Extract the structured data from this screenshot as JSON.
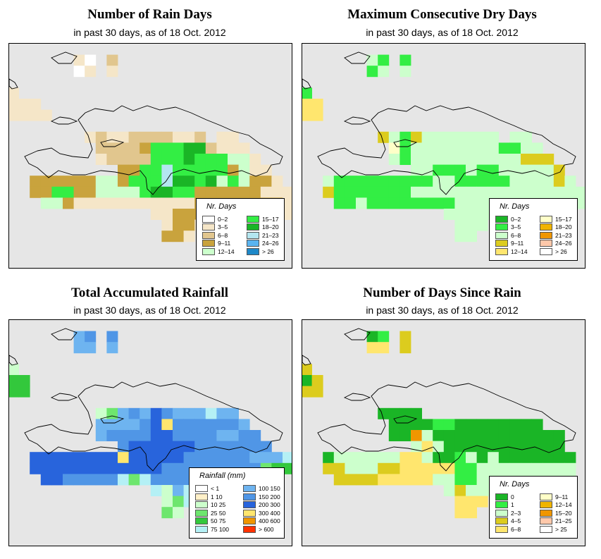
{
  "colors": {
    "background": "#e6e6e6",
    "coast": "#000000"
  },
  "panels": [
    {
      "id": "rain-days",
      "title": "Number of Rain Days",
      "subtitle": "in past 30 days, as of  18 Oct. 2012",
      "legend": {
        "title": "Nr. Days",
        "items": [
          {
            "label": "0–2",
            "color": "#ffffff"
          },
          {
            "label": "3–5",
            "color": "#f5e6c8"
          },
          {
            "label": "6–8",
            "color": "#e1c68e"
          },
          {
            "label": "9–11",
            "color": "#c9a33d"
          },
          {
            "label": "12–14",
            "color": "#ccffcc"
          },
          {
            "label": "15–17",
            "color": "#33ee44"
          },
          {
            "label": "18–20",
            "color": "#1ab526"
          },
          {
            "label": "21–23",
            "color": "#b4e6f0"
          },
          {
            "label": "24–26",
            "color": "#5ab4f0"
          },
          {
            "label": "> 26",
            "color": "#1e88c8"
          }
        ]
      },
      "grid": [
        "...............................................",
        "......ba.c......................................",
        "......ab.b......................................",
        "..............................................",
        "b......................................",
        "bbb......................................",
        "bbbb.........................................",
        "...........................................",
        ".......bcbbccccbbc.bb.........................",
        "........ccccdfffggcbbb........................",
        "........bccccfffgfffeeb.......................",
        "..........ddffhfffffdebb......................",
        "..ddddddeedfffhggfgefeddb.....................",
        "..ddffddeeeefggffddddddbbb....................",
        "...eedbbbbbbbbbbbddddddddbb...................",
        ".............bbddd.ebbbbbb....................",
        "..............bddb............................",
        "..............ddb............................."
      ]
    },
    {
      "id": "max-dry-days",
      "title": "Maximum Consecutive Dry Days",
      "subtitle": "in past 30 days, as of  18 Oct. 2012",
      "legend": {
        "title": "Nr. Days",
        "items": [
          {
            "label": "0–2",
            "color": "#1ab526"
          },
          {
            "label": "3–5",
            "color": "#33ee44"
          },
          {
            "label": "6–8",
            "color": "#ccffcc"
          },
          {
            "label": "9–11",
            "color": "#dccc1e"
          },
          {
            "label": "12–14",
            "color": "#ffe66e"
          },
          {
            "label": "15–17",
            "color": "#ffffc8"
          },
          {
            "label": "18–20",
            "color": "#f0b400"
          },
          {
            "label": "21–23",
            "color": "#f09600"
          },
          {
            "label": "24–26",
            "color": "#ffc8aa"
          },
          {
            "label": "> 26",
            "color": "#ffffff"
          }
        ]
      },
      "grid": [
        "...............................................",
        "......cb.b......................................",
        "......bc.c......................................",
        "..............................................",
        "b......................................",
        "ee.......................................",
        "ee...........................................",
        "...........................................",
        ".......dcbdccccccc.cc.........................",
        "........fbccccccccbbcc........................",
        "........cbccccccccccddd.......................",
        "..........ccbbbcbbcccccd......................",
        "..cbbbbbbbbbccbbbbbccccdc.....................",
        "..dbbbbbbbcccccccccccccccc....................",
        "...bbcbbbbbbbbcccccccccccc....................",
        ".............cccccccccccc.....................",
        "..............ccc.............................",
        "..............cc.............................."
      ]
    },
    {
      "id": "total-rainfall",
      "title": "Total Accumulated Rainfall",
      "subtitle": "in past 30 days, as of  18 Oct. 2012",
      "legend": {
        "title": "Rainfall (mm)",
        "items": [
          {
            "label": "< 1",
            "color": "#ffffff"
          },
          {
            "label": "1   10",
            "color": "#fff0c8"
          },
          {
            "label": "10   25",
            "color": "#ccffcc"
          },
          {
            "label": "25   50",
            "color": "#6ee66e"
          },
          {
            "label": "50   75",
            "color": "#33c83c"
          },
          {
            "label": "75  100",
            "color": "#b4f0f5"
          },
          {
            "label": "100  150",
            "color": "#6eb4f0"
          },
          {
            "label": "150  200",
            "color": "#5096e6"
          },
          {
            "label": "200  300",
            "color": "#2864dc"
          },
          {
            "label": "300  400",
            "color": "#ffe66e"
          },
          {
            "label": "400  600",
            "color": "#f09600"
          },
          {
            "label": "> 600",
            "color": "#ff3200"
          }
        ]
      },
      "grid": [
        "...............................................",
        "......gh.h......................................",
        "......gg.g......................................",
        "..............................................",
        "c......................................",
        "ee.......................................",
        "ee...........................................",
        "...........................................",
        "........cdghgihgggfgg.........................",
        "........gggghijhhhhhhg........................",
        "........ghhhhiihhhhgghh.......................",
        "..........hiiiiiihhhhhhh......................",
        "..iiiiiiiijiiiiihhhhhhgggf....................",
        "..iiiiiiiiiiiihhhhhhhhhdee....................",
        "...iihhhhhfdfhhhhhhhhhhee.....................",
        ".............fcgfhhffffe......................",
        "..............cdf.............................",
        "..............dc.............................."
      ]
    },
    {
      "id": "days-since-rain",
      "title": "Number of Days Since Rain",
      "subtitle": "in past 30 days, as of  18 Oct. 2012",
      "legend": {
        "title": "Nr. Days",
        "items": [
          {
            "label": "0",
            "color": "#1ab526"
          },
          {
            "label": "1",
            "color": "#33ee44"
          },
          {
            "label": "2–3",
            "color": "#ccffcc"
          },
          {
            "label": "4–5",
            "color": "#dccc1e"
          },
          {
            "label": "6–8",
            "color": "#ffe66e"
          },
          {
            "label": "9–11",
            "color": "#ffffc8"
          },
          {
            "label": "12–14",
            "color": "#f0b400"
          },
          {
            "label": "15–20",
            "color": "#f09600"
          },
          {
            "label": "21–25",
            "color": "#ffc8aa"
          },
          {
            "label": "> 25",
            "color": "#ffffff"
          }
        ]
      },
      "grid": [
        "...............................................",
        "......ab.d......................................",
        "......ee.d......................................",
        "..............................................",
        "d......................................",
        "ad.......................................",
        "dd...........................................",
        "...........................................",
        ".......aaaa...................................",
        "........aaaabbaaaaaaaa........................",
        "........aahcaaaaaaaaaaaa......................",
        "..........cecaaaaaaaaaaa......................",
        "..acccccceecaabcacaaaaaaa.....................",
        "..ddcccddeeeeebbccccccccc.....................",
        "...ddddeeeeeccbbccccccccc.....................",
        ".............cdccccccccb......................",
        "..............eee.............................",
        "..............ee.............................."
      ]
    }
  ]
}
